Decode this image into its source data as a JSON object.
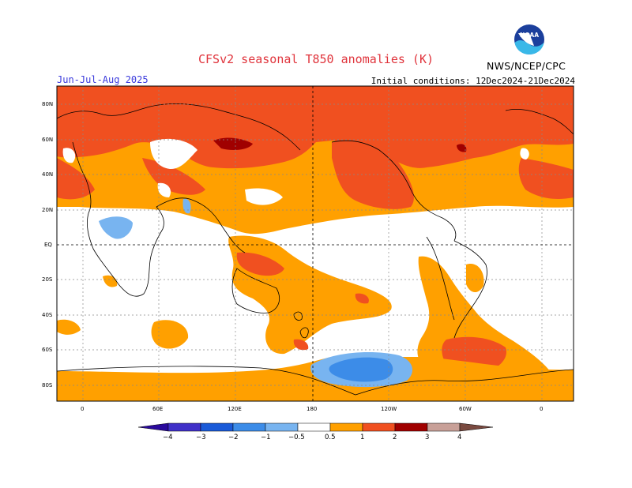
{
  "header": {
    "title": "CFSv2 seasonal T850 anomalies (K)",
    "season": "Jun-Jul-Aug 2025",
    "initial_conditions": "Initial conditions: 12Dec2024-21Dec2024",
    "agency": "NWS/NCEP/CPC",
    "logo_text": "NOAA"
  },
  "map": {
    "lat_labels": [
      "80N",
      "60N",
      "40N",
      "20N",
      "EQ",
      "20S",
      "40S",
      "60S",
      "80S"
    ],
    "lon_labels": [
      "0",
      "60E",
      "120E",
      "180",
      "120W",
      "60W",
      "0"
    ]
  },
  "colorbar": {
    "labels": [
      "−4",
      "−3",
      "−2",
      "−1",
      "−0.5",
      "0.5",
      "1",
      "2",
      "3",
      "4"
    ],
    "colors": {
      "below_-4": "#2a0a9c",
      "-4_-3": "#4030c8",
      "-3_-2": "#1a5ad8",
      "-2_-1": "#3c8ce8",
      "-1_-0.5": "#78b4f0",
      "neutral": "#ffffff",
      "0.5_1": "#ffa000",
      "1_2": "#f05020",
      "2_3": "#a00000",
      "3_4": "#c8a098",
      "above_4": "#7a4a40"
    }
  }
}
